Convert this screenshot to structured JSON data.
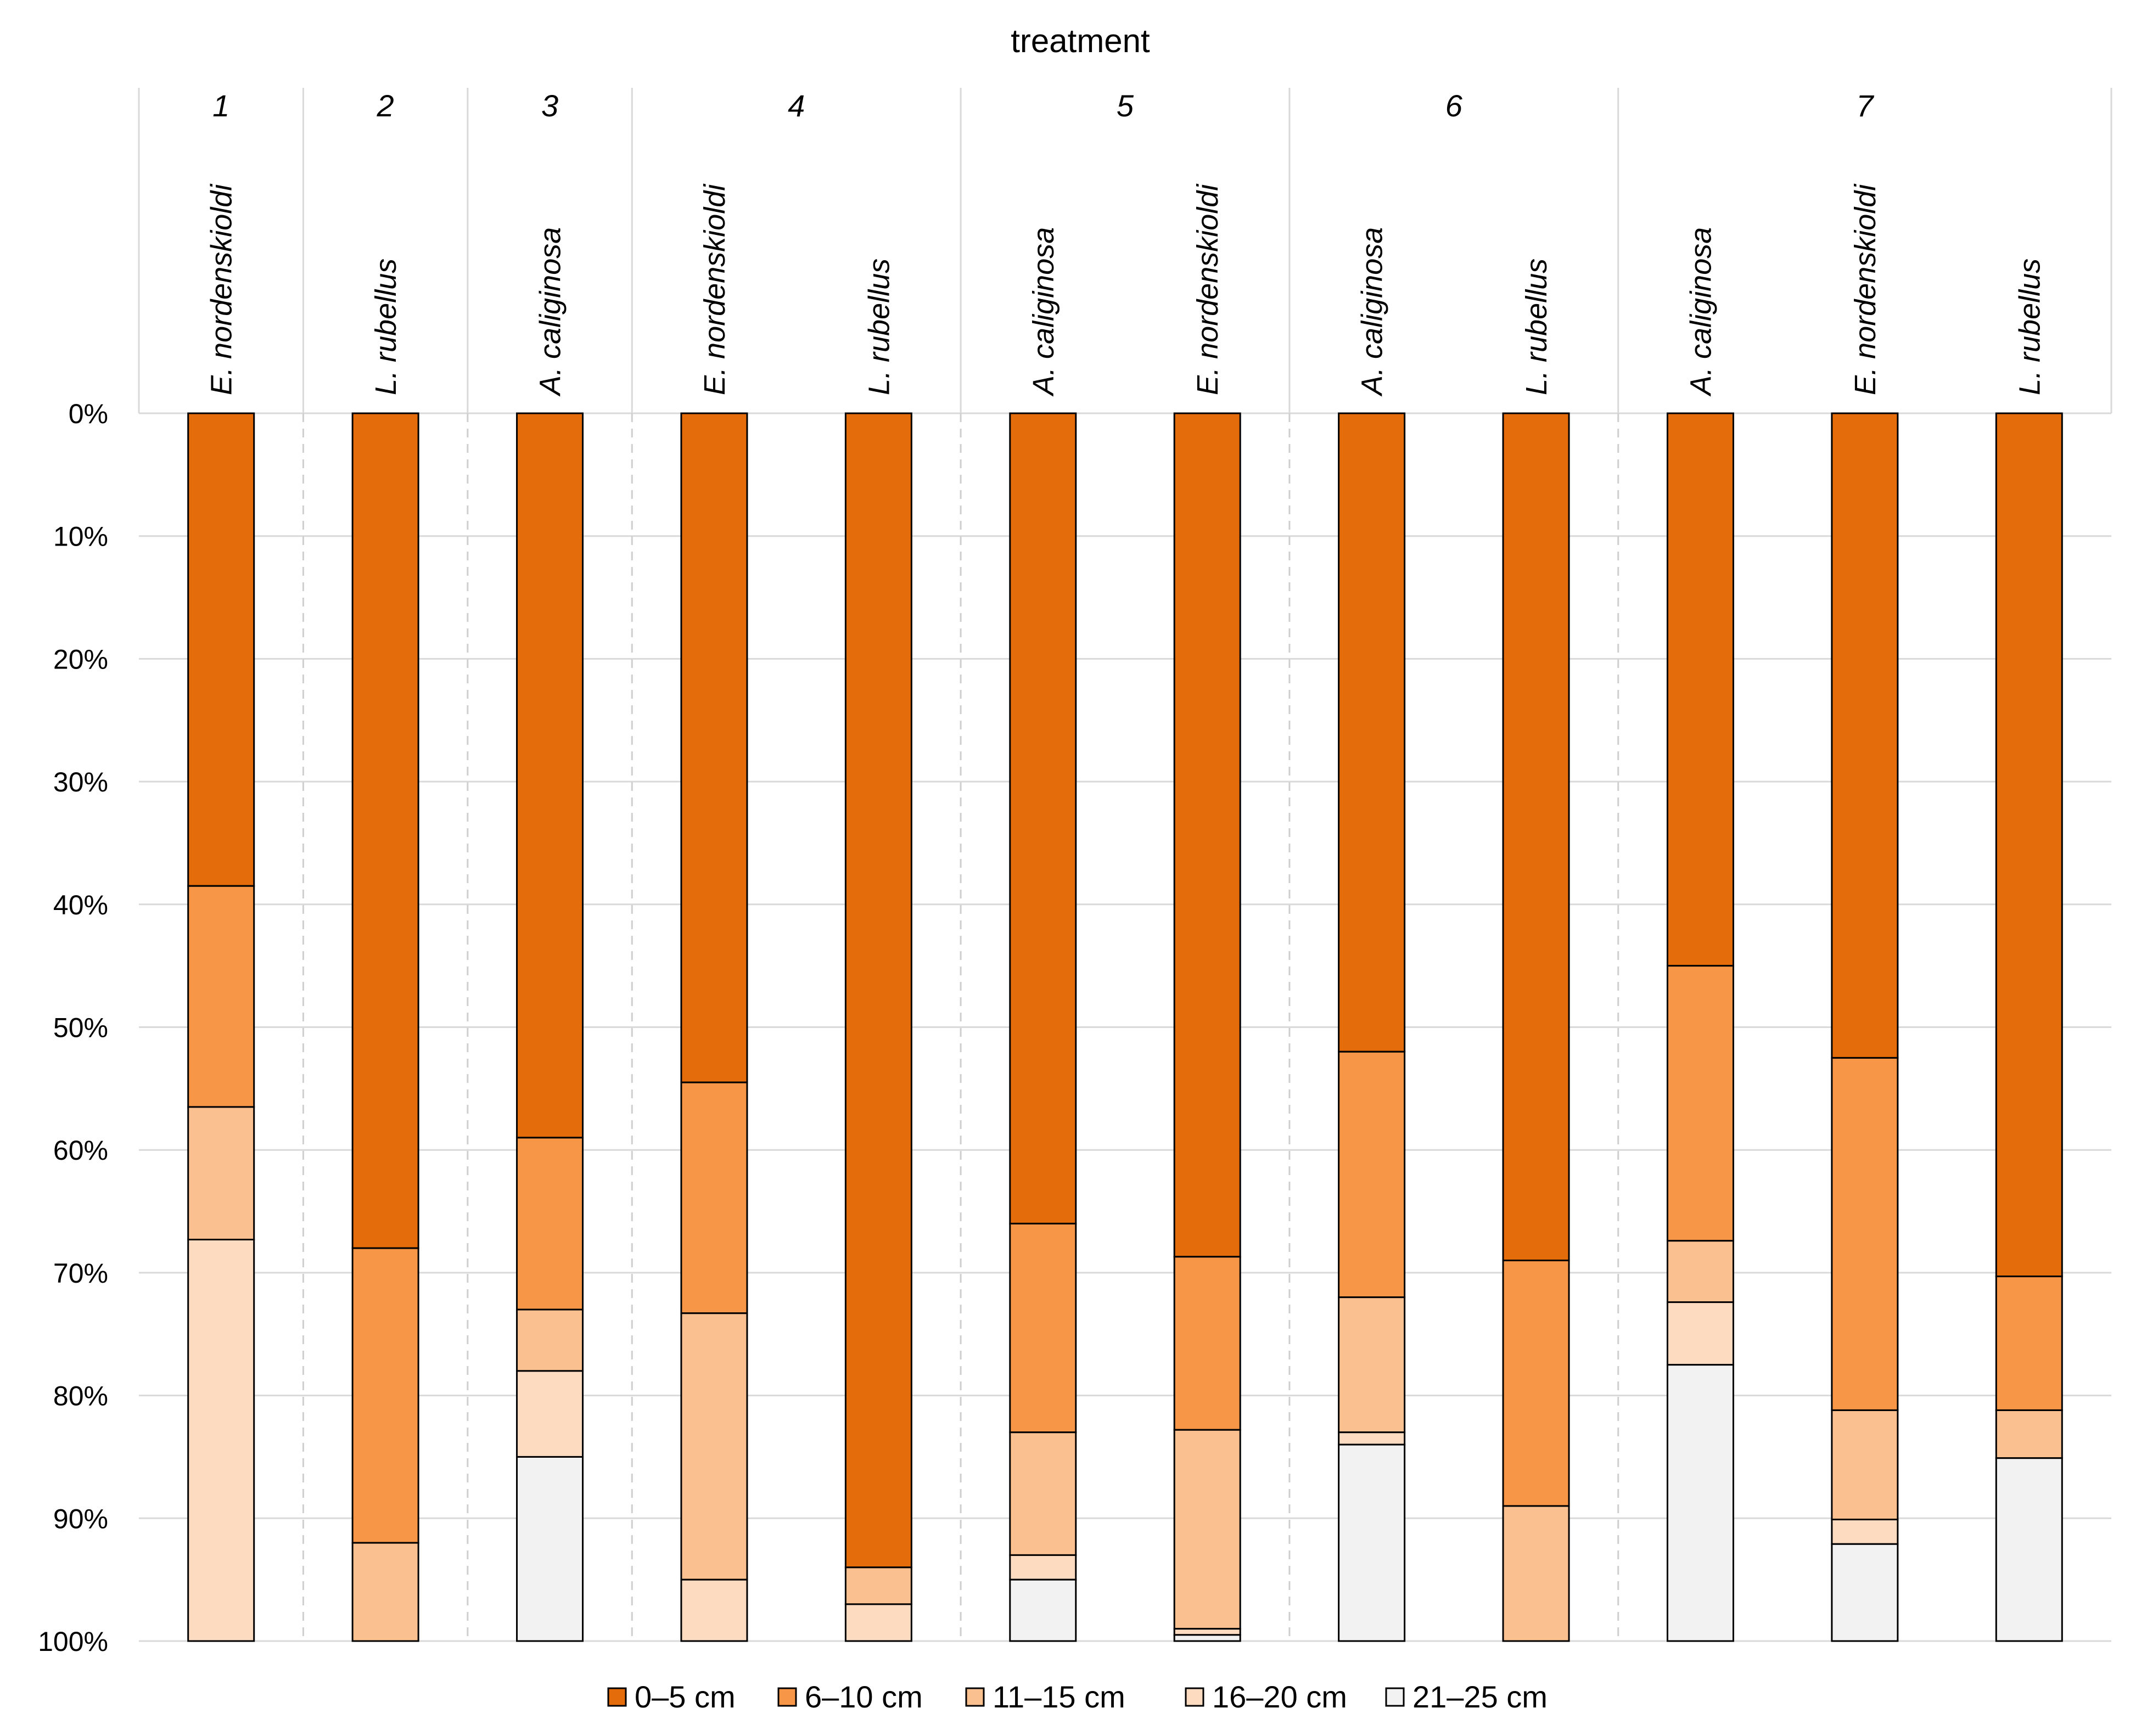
{
  "chart_data": {
    "type": "bar",
    "stacked": true,
    "orientation": "vertical",
    "y_direction": "top-down",
    "title": "treatment",
    "ylim": [
      0,
      100
    ],
    "yticks": [
      "0%",
      "10%",
      "20%",
      "30%",
      "40%",
      "50%",
      "60%",
      "70%",
      "80%",
      "90%",
      "100%"
    ],
    "groups": [
      {
        "label": "1",
        "bars": [
          "E. nordenskioldi"
        ]
      },
      {
        "label": "2",
        "bars": [
          "L. rubellus"
        ]
      },
      {
        "label": "3",
        "bars": [
          "A. caliginosa"
        ]
      },
      {
        "label": "4",
        "bars": [
          "E. nordenskioldi",
          "L. rubellus"
        ]
      },
      {
        "label": "5",
        "bars": [
          "A. caliginosa",
          "E. nordenskioldi"
        ]
      },
      {
        "label": "6",
        "bars": [
          "A. caliginosa",
          "L. rubellus"
        ]
      },
      {
        "label": "7",
        "bars": [
          "A. caliginosa",
          "E. nordenskioldi",
          "L. rubellus"
        ]
      }
    ],
    "categories": [
      "E. nordenskioldi",
      "L. rubellus",
      "A. caliginosa",
      "E. nordenskioldi",
      "L. rubellus",
      "A. caliginosa",
      "E. nordenskioldi",
      "A. caliginosa",
      "L. rubellus",
      "A. caliginosa",
      "E. nordenskioldi",
      "L. rubellus"
    ],
    "series": [
      {
        "name": "0–5 cm",
        "color": "#e46c0a",
        "values": [
          38.5,
          68,
          59,
          54.5,
          94,
          66,
          68.7,
          52,
          69,
          45,
          52.5,
          70.3
        ]
      },
      {
        "name": "6–10 cm",
        "color": "#f79646",
        "values": [
          18,
          24,
          14,
          18.8,
          0,
          17,
          14.1,
          20,
          20,
          22.4,
          28.7,
          10.9
        ]
      },
      {
        "name": "11–15 cm",
        "color": "#fac090",
        "values": [
          10.8,
          8,
          5,
          21.7,
          3,
          10,
          16.2,
          11,
          11,
          5,
          8.9,
          3.9
        ]
      },
      {
        "name": "16–20 cm",
        "color": "#fcdbc1",
        "values": [
          32.7,
          0,
          7,
          5,
          3,
          2,
          0.5,
          1,
          0,
          5.1,
          2,
          0
        ]
      },
      {
        "name": "21–25 cm",
        "color": "#f2f2f2",
        "values": [
          0,
          0,
          15,
          0,
          0,
          5,
          0.5,
          16,
          0,
          22.5,
          7.9,
          14.9
        ]
      }
    ],
    "grid": true,
    "legend": "bottom"
  }
}
